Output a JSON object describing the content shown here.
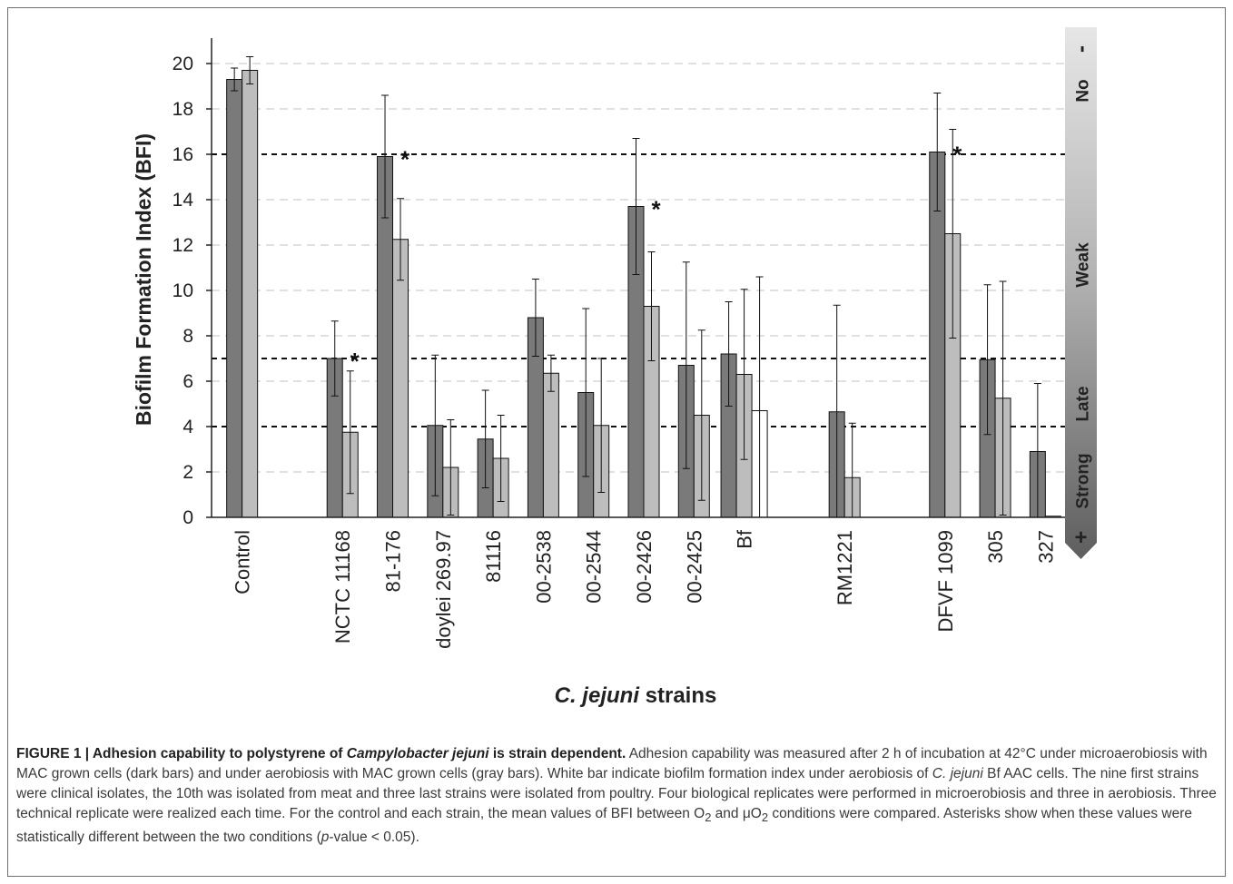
{
  "chart_data": {
    "type": "bar",
    "xlabel_italic": "C. jejuni",
    "xlabel_rest": " strains",
    "ylabel": "Biofilm Formation Index (BFI)",
    "ylim": [
      0,
      21
    ],
    "yticks": [
      0,
      2,
      4,
      6,
      8,
      10,
      12,
      14,
      16,
      18,
      20
    ],
    "grid": "horizontal dashed",
    "threshold_lines": [
      4,
      7,
      16
    ],
    "side_scale": {
      "top_symbol": "-",
      "bottom_symbol": "+",
      "bands": [
        {
          "label": "No",
          "from": 16,
          "to": 21
        },
        {
          "label": "Weak",
          "from": 7,
          "to": 16
        },
        {
          "label": "Late",
          "from": 4,
          "to": 7
        },
        {
          "label": "Strong",
          "from": 0,
          "to": 4
        }
      ]
    },
    "groups": [
      {
        "label": "Control",
        "bars": [
          {
            "c": "dark",
            "v": 19.3,
            "e": 0.5
          },
          {
            "c": "gray",
            "v": 19.7,
            "e": 0.6
          }
        ],
        "star": false,
        "gap": 0
      },
      {
        "label": "NCTC 11168",
        "bars": [
          {
            "c": "dark",
            "v": 7.0,
            "e": 1.65
          },
          {
            "c": "gray",
            "v": 3.75,
            "e": 2.7
          }
        ],
        "star": true,
        "gap": 1
      },
      {
        "label": "81-176",
        "bars": [
          {
            "c": "dark",
            "v": 15.9,
            "e": 2.7
          },
          {
            "c": "gray",
            "v": 12.25,
            "e": 1.8
          }
        ],
        "star": true,
        "gap": 0
      },
      {
        "label": "doylei 269.97",
        "bars": [
          {
            "c": "dark",
            "v": 4.05,
            "e": 3.1
          },
          {
            "c": "gray",
            "v": 2.2,
            "e": 2.1
          }
        ],
        "star": false,
        "gap": 0
      },
      {
        "label": "81116",
        "bars": [
          {
            "c": "dark",
            "v": 3.45,
            "e": 2.15
          },
          {
            "c": "gray",
            "v": 2.6,
            "e": 1.9
          }
        ],
        "star": false,
        "gap": 0
      },
      {
        "label": "00-2538",
        "bars": [
          {
            "c": "dark",
            "v": 8.8,
            "e": 1.7
          },
          {
            "c": "gray",
            "v": 6.35,
            "e": 0.8
          }
        ],
        "star": false,
        "gap": 0
      },
      {
        "label": "00-2544",
        "bars": [
          {
            "c": "dark",
            "v": 5.5,
            "e": 3.7
          },
          {
            "c": "gray",
            "v": 4.05,
            "e": 2.95
          }
        ],
        "star": false,
        "gap": 0
      },
      {
        "label": "00-2426",
        "bars": [
          {
            "c": "dark",
            "v": 13.7,
            "e": 3.0
          },
          {
            "c": "gray",
            "v": 9.3,
            "e": 2.4
          }
        ],
        "star": true,
        "gap": 0
      },
      {
        "label": "00-2425",
        "bars": [
          {
            "c": "dark",
            "v": 6.7,
            "e": 4.55
          },
          {
            "c": "gray",
            "v": 4.5,
            "e": 3.75
          }
        ],
        "star": false,
        "gap": 0
      },
      {
        "label": "Bf",
        "bars": [
          {
            "c": "dark",
            "v": 7.2,
            "e": 2.3
          },
          {
            "c": "gray",
            "v": 6.3,
            "e": 3.75
          },
          {
            "c": "white",
            "v": 4.7,
            "e": 5.9
          }
        ],
        "star": false,
        "gap": 0
      },
      {
        "label": "RM1221",
        "bars": [
          {
            "c": "dark",
            "v": 4.65,
            "e": 4.7
          },
          {
            "c": "gray",
            "v": 1.75,
            "e": 2.4
          }
        ],
        "star": false,
        "gap": 1
      },
      {
        "label": "DFVF 1099",
        "bars": [
          {
            "c": "dark",
            "v": 16.1,
            "e": 2.6
          },
          {
            "c": "gray",
            "v": 12.5,
            "e": 4.6
          }
        ],
        "star": true,
        "gap": 1
      },
      {
        "label": "305",
        "bars": [
          {
            "c": "dark",
            "v": 6.95,
            "e": 3.3
          },
          {
            "c": "gray",
            "v": 5.25,
            "e": 5.15
          }
        ],
        "star": false,
        "gap": 0
      },
      {
        "label": "327",
        "bars": [
          {
            "c": "dark",
            "v": 2.9,
            "e": 3.0
          },
          {
            "c": "gray",
            "v": 0.05,
            "e": 0
          }
        ],
        "star": false,
        "gap": 0
      }
    ],
    "star_symbol": "*",
    "colors": {
      "dark": "#7a7a7a",
      "gray": "#bdbdbd",
      "white": "#ffffff",
      "axis": "#222222",
      "grid": "#cfcfcf"
    }
  },
  "caption": {
    "lead": "FIGURE 1 | Adhesion capability to polystyrene of ",
    "lead_italic": "Campylobacter jejuni",
    "lead_end": " is strain dependent.",
    "t1": " Adhesion capability was measured after 2 h of incubation at 42°C under microaerobiosis with MAC grown cells (dark bars) and under aerobiosis with MAC grown cells (gray bars). White bar indicate biofilm formation index under aerobiosis of ",
    "t1_italic": "C. jejuni",
    "t2": " Bf AAC cells. The nine first strains were clinical isolates, the 10th was isolated from meat and three last strains were isolated from poultry. Four biological replicates were performed in microerobiosis and three in aerobiosis. Three technical replicate were realized each time. For the control and each strain, the mean values of BFI between O",
    "t2_sub": "2",
    "t3": " and μO",
    "t3_sub": "2",
    "t4": " conditions were compared. Asterisks show when these values were statistically different between the two conditions (",
    "t4_italic": "p",
    "t5": "-value < 0.05)."
  }
}
